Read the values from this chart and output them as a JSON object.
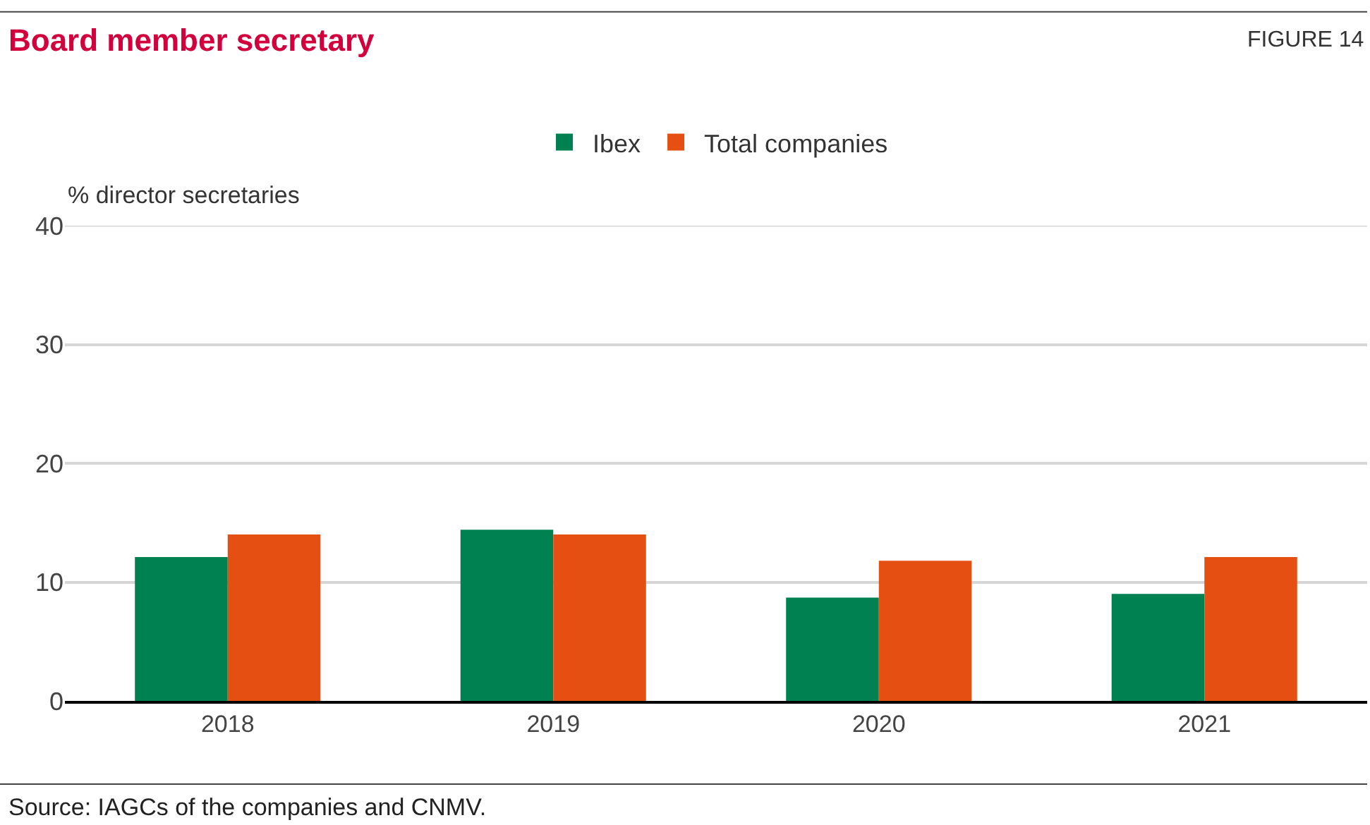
{
  "chart_data": {
    "type": "bar",
    "title": "Board member secretary",
    "subtitle": "FIGURE 14",
    "ylabel": "% director secretaries",
    "categories": [
      "2018",
      "2019",
      "2020",
      "2021"
    ],
    "series": [
      {
        "name": "Ibex",
        "color": "#008151",
        "values": [
          12.1,
          14.4,
          8.7,
          9.0
        ]
      },
      {
        "name": "Total companies",
        "color": "#e64f12",
        "values": [
          14.0,
          14.0,
          11.8,
          12.1
        ]
      }
    ],
    "ylim": [
      0,
      40
    ],
    "yticks": [
      0,
      10,
      20,
      30,
      40
    ],
    "grid": "y",
    "legend": "top",
    "annotations": [
      "Source: IAGCs of the companies and CNMV."
    ]
  }
}
